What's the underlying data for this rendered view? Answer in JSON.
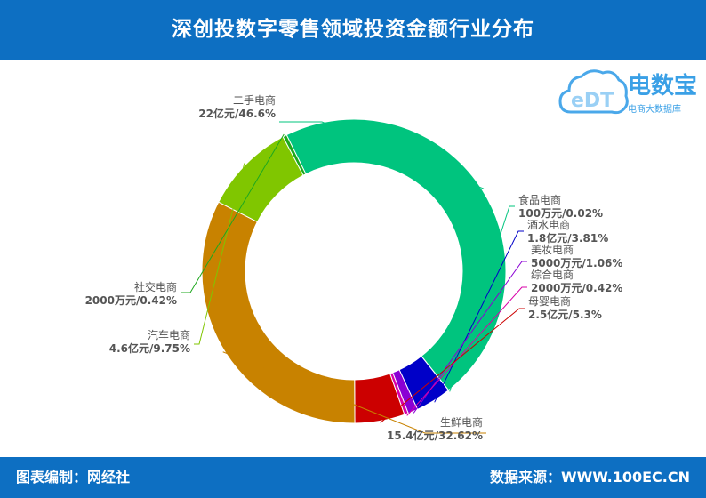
{
  "header": {
    "title": "深创投数字零售领域投资金额行业分布"
  },
  "logo": {
    "brand": "电数宝",
    "tagline": "电商大数据库",
    "mark_text": "eDT"
  },
  "footer": {
    "left": "图表编制：网经社",
    "right": "数据来源：WWW.100EC.CN"
  },
  "colors": {
    "header_bg": "#0d6fc2",
    "text": "#555555"
  },
  "chart_data": {
    "type": "pie",
    "donut": true,
    "slices": [
      {
        "name": "二手电商",
        "value_label": "22亿元/46.6%",
        "percent": 46.6,
        "color": "#00c47e"
      },
      {
        "name": "食品电商",
        "value_label": "100万元/0.02%",
        "percent": 0.02,
        "color": "#00c47e"
      },
      {
        "name": "酒水电商",
        "value_label": "1.8亿元/3.81%",
        "percent": 3.81,
        "color": "#0000c8"
      },
      {
        "name": "美妆电商",
        "value_label": "5000万元/1.06%",
        "percent": 1.06,
        "color": "#8a00d4"
      },
      {
        "name": "综合电商",
        "value_label": "2000万元/0.42%",
        "percent": 0.42,
        "color": "#d800a8"
      },
      {
        "name": "母婴电商",
        "value_label": "2.5亿元/5.3%",
        "percent": 5.3,
        "color": "#cc0000"
      },
      {
        "name": "生鲜电商",
        "value_label": "15.4亿元/32.62%",
        "percent": 32.62,
        "color": "#c88200"
      },
      {
        "name": "汽车电商",
        "value_label": "4.6亿元/9.75%",
        "percent": 9.75,
        "color": "#80c600"
      },
      {
        "name": "社交电商",
        "value_label": "2000万元/0.42%",
        "percent": 0.42,
        "color": "#1ea81e"
      }
    ]
  }
}
